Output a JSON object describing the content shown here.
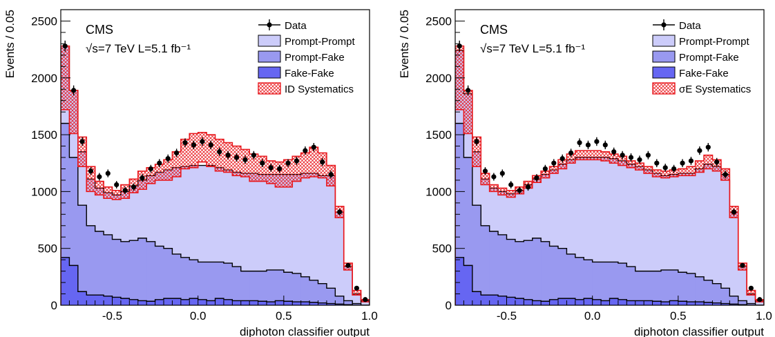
{
  "chart_data": [
    {
      "type": "histogram",
      "panel": "left",
      "experiment_label": "CMS",
      "energy_label": "√s=7 TeV L=5.1 fb⁻¹",
      "xlabel": "diphoton classifier output",
      "ylabel": "Events / 0.05",
      "xlim": [
        -0.8,
        1.0
      ],
      "ylim": [
        0,
        2600
      ],
      "x_ticks": [
        "-0.5",
        "0.0",
        "0.5",
        "1.0"
      ],
      "y_ticks": [
        "0",
        "500",
        "1000",
        "1500",
        "2000",
        "2500"
      ],
      "grid": false,
      "legend_position": "top-right",
      "legend": [
        {
          "label": "Data",
          "kind": "marker"
        },
        {
          "label": "Prompt-Prompt",
          "kind": "fill",
          "color": "#ccccfa"
        },
        {
          "label": "Prompt-Fake",
          "kind": "fill",
          "color": "#9999f0"
        },
        {
          "label": "Fake-Fake",
          "kind": "fill",
          "color": "#6666f2"
        },
        {
          "label": "ID Systematics",
          "kind": "hatch",
          "color": "#e8181d"
        }
      ],
      "bin_edges_start": -0.8,
      "bin_width": 0.05,
      "series": [
        {
          "name": "Data",
          "x": [
            -0.775,
            -0.725,
            -0.675,
            -0.625,
            -0.575,
            -0.525,
            -0.475,
            -0.425,
            -0.375,
            -0.325,
            -0.275,
            -0.225,
            -0.175,
            -0.125,
            -0.075,
            -0.025,
            0.025,
            0.075,
            0.125,
            0.175,
            0.225,
            0.275,
            0.325,
            0.375,
            0.425,
            0.475,
            0.525,
            0.575,
            0.625,
            0.675,
            0.725,
            0.775,
            0.825,
            0.875,
            0.925,
            0.975
          ],
          "values": [
            2280,
            1890,
            1440,
            1180,
            1130,
            1160,
            1060,
            1010,
            1040,
            1120,
            1200,
            1250,
            1290,
            1340,
            1430,
            1410,
            1440,
            1410,
            1350,
            1320,
            1300,
            1280,
            1320,
            1250,
            1210,
            1200,
            1250,
            1270,
            1360,
            1390,
            1260,
            1150,
            820,
            350,
            150,
            50
          ]
        },
        {
          "name": "Prompt-Prompt",
          "values": [
            2280,
            1890,
            1350,
            1110,
            1030,
            990,
            970,
            1000,
            1050,
            1100,
            1140,
            1170,
            1190,
            1210,
            1220,
            1230,
            1230,
            1230,
            1210,
            1190,
            1170,
            1160,
            1160,
            1150,
            1150,
            1150,
            1150,
            1150,
            1160,
            1160,
            1140,
            1140,
            820,
            340,
            100,
            40
          ]
        },
        {
          "name": "Prompt-Fake",
          "values": [
            1600,
            1300,
            880,
            700,
            650,
            620,
            580,
            560,
            570,
            590,
            560,
            520,
            500,
            450,
            420,
            400,
            380,
            380,
            380,
            370,
            340,
            300,
            300,
            300,
            310,
            310,
            290,
            280,
            250,
            220,
            190,
            150,
            80,
            40,
            15,
            0
          ]
        },
        {
          "name": "Fake-Fake",
          "values": [
            420,
            350,
            120,
            90,
            90,
            80,
            70,
            60,
            50,
            40,
            35,
            50,
            60,
            60,
            50,
            60,
            50,
            40,
            60,
            50,
            40,
            40,
            40,
            35,
            30,
            40,
            35,
            30,
            30,
            25,
            20,
            15,
            10,
            5,
            0,
            0
          ]
        },
        {
          "name": "ID Systematics",
          "kind": "band",
          "center": [
            2000,
            1700,
            1350,
            1110,
            1030,
            990,
            970,
            1000,
            1050,
            1100,
            1140,
            1170,
            1190,
            1240,
            1330,
            1360,
            1390,
            1360,
            1320,
            1300,
            1270,
            1250,
            1210,
            1200,
            1170,
            1150,
            1160,
            1200,
            1230,
            1260,
            1230,
            1140,
            820,
            340,
            110,
            40
          ],
          "half_width": [
            280,
            190,
            130,
            110,
            60,
            50,
            40,
            60,
            60,
            80,
            70,
            70,
            90,
            110,
            130,
            150,
            130,
            140,
            140,
            130,
            130,
            120,
            120,
            110,
            100,
            110,
            120,
            110,
            110,
            130,
            110,
            90,
            50,
            30,
            20,
            10
          ]
        }
      ]
    },
    {
      "type": "histogram",
      "panel": "right",
      "experiment_label": "CMS",
      "energy_label": "√s=7 TeV L=5.1 fb⁻¹",
      "xlabel": "diphoton classifier output",
      "ylabel": "Events / 0.05",
      "xlim": [
        -0.8,
        1.0
      ],
      "ylim": [
        0,
        2600
      ],
      "x_ticks": [
        "-0.5",
        "0.0",
        "0.5",
        "1.0"
      ],
      "y_ticks": [
        "0",
        "500",
        "1000",
        "1500",
        "2000",
        "2500"
      ],
      "grid": false,
      "legend_position": "top-right",
      "legend": [
        {
          "label": "Data",
          "kind": "marker"
        },
        {
          "label": "Prompt-Prompt",
          "kind": "fill",
          "color": "#ccccfa"
        },
        {
          "label": "Prompt-Fake",
          "kind": "fill",
          "color": "#9999f0"
        },
        {
          "label": "Fake-Fake",
          "kind": "fill",
          "color": "#6666f2"
        },
        {
          "label": "σE Systematics",
          "kind": "hatch",
          "color": "#e8181d"
        }
      ],
      "bin_edges_start": -0.8,
      "bin_width": 0.05,
      "series": [
        {
          "name": "Data",
          "x": [
            -0.775,
            -0.725,
            -0.675,
            -0.625,
            -0.575,
            -0.525,
            -0.475,
            -0.425,
            -0.375,
            -0.325,
            -0.275,
            -0.225,
            -0.175,
            -0.125,
            -0.075,
            -0.025,
            0.025,
            0.075,
            0.125,
            0.175,
            0.225,
            0.275,
            0.325,
            0.375,
            0.425,
            0.475,
            0.525,
            0.575,
            0.625,
            0.675,
            0.725,
            0.775,
            0.825,
            0.875,
            0.925,
            0.975
          ],
          "values": [
            2280,
            1890,
            1440,
            1180,
            1130,
            1160,
            1060,
            1010,
            1040,
            1120,
            1200,
            1250,
            1290,
            1340,
            1430,
            1410,
            1440,
            1410,
            1350,
            1320,
            1300,
            1280,
            1320,
            1250,
            1210,
            1200,
            1250,
            1270,
            1360,
            1390,
            1260,
            1150,
            820,
            350,
            150,
            50
          ]
        },
        {
          "name": "Prompt-Prompt",
          "values": [
            2240,
            1860,
            1350,
            1110,
            1030,
            1000,
            980,
            1010,
            1060,
            1110,
            1150,
            1190,
            1240,
            1280,
            1300,
            1300,
            1300,
            1300,
            1290,
            1270,
            1240,
            1220,
            1190,
            1160,
            1140,
            1150,
            1160,
            1160,
            1200,
            1240,
            1220,
            1150,
            820,
            340,
            100,
            40
          ]
        },
        {
          "name": "Prompt-Fake",
          "values": [
            1600,
            1300,
            880,
            700,
            650,
            620,
            580,
            560,
            570,
            590,
            560,
            520,
            500,
            450,
            420,
            400,
            380,
            380,
            380,
            370,
            340,
            300,
            300,
            300,
            310,
            310,
            290,
            280,
            250,
            220,
            190,
            150,
            80,
            40,
            15,
            0
          ]
        },
        {
          "name": "Fake-Fake",
          "values": [
            420,
            350,
            120,
            90,
            90,
            80,
            70,
            60,
            50,
            40,
            35,
            50,
            60,
            60,
            50,
            60,
            50,
            40,
            60,
            50,
            40,
            40,
            40,
            35,
            30,
            40,
            35,
            30,
            30,
            25,
            20,
            15,
            10,
            5,
            0,
            0
          ]
        },
        {
          "name": "σE Systematics",
          "kind": "band",
          "center": [
            2000,
            1700,
            1350,
            1110,
            1030,
            1000,
            980,
            1010,
            1060,
            1110,
            1150,
            1190,
            1240,
            1290,
            1320,
            1320,
            1320,
            1310,
            1290,
            1270,
            1240,
            1220,
            1190,
            1160,
            1150,
            1160,
            1170,
            1180,
            1220,
            1260,
            1230,
            1150,
            820,
            340,
            110,
            40
          ],
          "half_width": [
            280,
            190,
            130,
            50,
            30,
            30,
            30,
            30,
            30,
            30,
            30,
            30,
            40,
            40,
            40,
            40,
            40,
            40,
            40,
            40,
            30,
            30,
            30,
            30,
            30,
            30,
            30,
            40,
            50,
            60,
            50,
            50,
            50,
            30,
            20,
            10
          ]
        }
      ]
    }
  ]
}
